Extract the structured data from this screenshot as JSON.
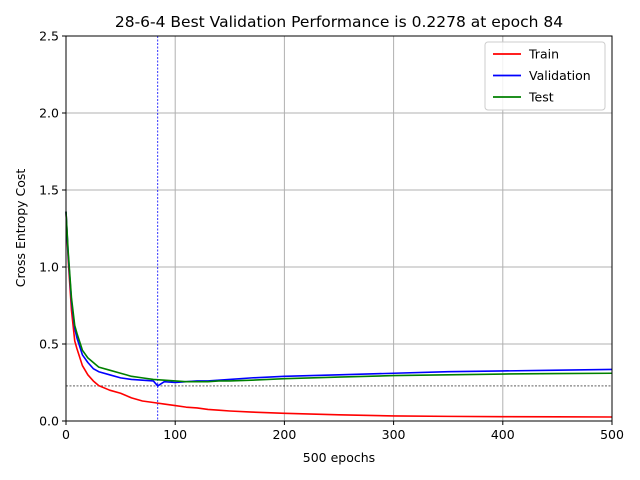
{
  "chart_data": {
    "type": "line",
    "title": "28-6-4 Best Validation Performance is 0.2278 at epoch 84",
    "xlabel": "500 epochs",
    "ylabel": "Cross Entropy Cost",
    "xlim": [
      0,
      500
    ],
    "ylim": [
      0,
      2.5
    ],
    "xticks": [
      0,
      100,
      200,
      300,
      400,
      500
    ],
    "xtick_labels": [
      "0",
      "100",
      "200",
      "300",
      "400",
      "500"
    ],
    "yticks": [
      0.0,
      0.5,
      1.0,
      1.5,
      2.0,
      2.5
    ],
    "ytick_labels": [
      "0.0",
      "0.5",
      "1.0",
      "1.5",
      "2.0",
      "2.5"
    ],
    "grid": true,
    "legend_position": "top-right",
    "best_epoch": 84,
    "best_value": 0.2278,
    "series": [
      {
        "name": "Train",
        "color": "#ff0000",
        "x": [
          0,
          2,
          5,
          8,
          10,
          15,
          20,
          25,
          30,
          40,
          50,
          60,
          70,
          80,
          90,
          100,
          110,
          120,
          130,
          140,
          150,
          170,
          200,
          250,
          300,
          350,
          400,
          450,
          500
        ],
        "y": [
          1.36,
          1.05,
          0.72,
          0.52,
          0.47,
          0.36,
          0.3,
          0.26,
          0.23,
          0.2,
          0.18,
          0.15,
          0.13,
          0.12,
          0.11,
          0.1,
          0.09,
          0.085,
          0.075,
          0.07,
          0.065,
          0.058,
          0.05,
          0.04,
          0.033,
          0.03,
          0.028,
          0.027,
          0.026
        ]
      },
      {
        "name": "Validation",
        "color": "#0000ff",
        "x": [
          0,
          2,
          5,
          8,
          10,
          15,
          20,
          25,
          30,
          40,
          50,
          60,
          70,
          80,
          84,
          90,
          100,
          110,
          120,
          130,
          140,
          150,
          170,
          200,
          250,
          300,
          350,
          400,
          450,
          500
        ],
        "y": [
          1.36,
          1.08,
          0.78,
          0.6,
          0.54,
          0.43,
          0.38,
          0.34,
          0.32,
          0.3,
          0.28,
          0.27,
          0.265,
          0.26,
          0.2278,
          0.255,
          0.25,
          0.255,
          0.26,
          0.26,
          0.265,
          0.27,
          0.28,
          0.29,
          0.3,
          0.31,
          0.32,
          0.325,
          0.33,
          0.335
        ]
      },
      {
        "name": "Test",
        "color": "#008000",
        "x": [
          0,
          2,
          5,
          8,
          10,
          15,
          20,
          25,
          30,
          40,
          50,
          60,
          70,
          80,
          90,
          100,
          110,
          120,
          130,
          140,
          150,
          170,
          200,
          250,
          300,
          350,
          400,
          450,
          500
        ],
        "y": [
          1.36,
          1.1,
          0.8,
          0.62,
          0.57,
          0.46,
          0.41,
          0.38,
          0.35,
          0.33,
          0.31,
          0.29,
          0.28,
          0.27,
          0.265,
          0.26,
          0.255,
          0.255,
          0.255,
          0.26,
          0.26,
          0.265,
          0.275,
          0.285,
          0.295,
          0.3,
          0.305,
          0.308,
          0.31
        ]
      }
    ]
  }
}
